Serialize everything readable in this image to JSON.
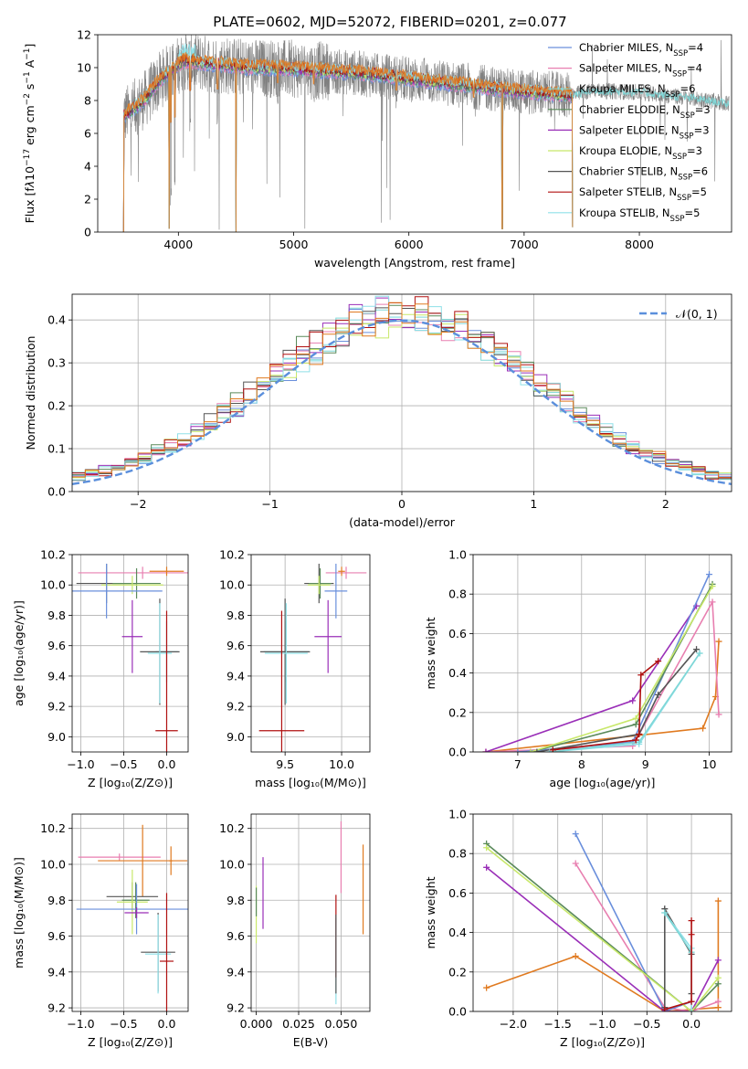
{
  "colors": {
    "Chabrier MILES": "#6a8fdc",
    "Salpeter MILES": "#e87fb0",
    "Kroupa MILES": "#7fd7d7",
    "Chabrier ELODIE": "#5a8a5a",
    "Salpeter ELODIE": "#9a2fb8",
    "Kroupa ELODIE": "#c8e86a",
    "Chabrier STELIB": "#555555",
    "Salpeter STELIB": "#b01010",
    "Kroupa STELIB": "#8fe0e8",
    "Extra orange": "#e07a20",
    "data": "#808080",
    "gaussian": "#5b8fdc"
  },
  "chart_data": [
    {
      "id": "spectrum",
      "type": "line",
      "title": "PLATE=0602, MJD=52072, FIBERID=0201, z=0.077",
      "xlabel": "wavelength [Angstrom, rest frame]",
      "ylabel_parts": [
        "Flux [f",
        "λ",
        "10",
        "−17",
        " erg cm",
        "−2",
        " s",
        "−1",
        " A",
        "−1",
        "]"
      ],
      "xlim": [
        3300,
        8800
      ],
      "ylim": [
        0,
        12
      ],
      "xticks": [
        "4000",
        "5000",
        "6000",
        "7000",
        "8000"
      ],
      "yticks": [
        "0",
        "2",
        "4",
        "6",
        "8",
        "10",
        "12"
      ],
      "grid": false,
      "legend_position": "top-right",
      "legend": [
        {
          "label": "Chabrier MILES, N",
          "sub": "SSP",
          "tail": "=4",
          "color": "#6a8fdc"
        },
        {
          "label": "Salpeter MILES, N",
          "sub": "SSP",
          "tail": "=4",
          "color": "#e87fb0"
        },
        {
          "label": "Kroupa MILES, N",
          "sub": "SSP",
          "tail": "=6",
          "color": "#7fd7d7"
        },
        {
          "label": "Chabrier ELODIE, N",
          "sub": "SSP",
          "tail": "=3",
          "color": "#5a8a5a"
        },
        {
          "label": "Salpeter ELODIE, N",
          "sub": "SSP",
          "tail": "=3",
          "color": "#9a2fb8"
        },
        {
          "label": "Kroupa ELODIE, N",
          "sub": "SSP",
          "tail": "=3",
          "color": "#c8e86a"
        },
        {
          "label": "Chabrier STELIB, N",
          "sub": "SSP",
          "tail": "=6",
          "color": "#555555"
        },
        {
          "label": "Salpeter STELIB, N",
          "sub": "SSP",
          "tail": "=5",
          "color": "#b01010"
        },
        {
          "label": "Kroupa STELIB, N",
          "sub": "SSP",
          "tail": "=5",
          "color": "#8fe0e8"
        }
      ],
      "data_x_range": [
        3520,
        8780
      ],
      "model_x_range": [
        3520,
        7420
      ],
      "data_shape": [
        [
          3520,
          7.0
        ],
        [
          3700,
          8.0
        ],
        [
          3850,
          9.3
        ],
        [
          3950,
          9.9
        ],
        [
          4050,
          10.4
        ],
        [
          4300,
          10.2
        ],
        [
          4600,
          10.0
        ],
        [
          5000,
          9.9
        ],
        [
          5500,
          9.7
        ],
        [
          6000,
          9.3
        ],
        [
          6500,
          8.9
        ],
        [
          7000,
          8.5
        ],
        [
          7400,
          8.3
        ],
        [
          7600,
          8.6
        ],
        [
          8000,
          8.5
        ],
        [
          8500,
          8.1
        ],
        [
          8780,
          7.8
        ]
      ],
      "absorption_features": [
        [
          3934,
          2.0
        ],
        [
          3969,
          2.5
        ],
        [
          4102,
          6.0
        ],
        [
          4340,
          6.5
        ],
        [
          4861,
          7.8
        ],
        [
          5175,
          7.8
        ],
        [
          5892,
          7.5
        ],
        [
          6563,
          7.2
        ]
      ],
      "model_dips": [
        [
          3920,
          0.2
        ],
        [
          4500,
          0.0
        ],
        [
          6810,
          0.2
        ],
        [
          7420,
          0.3
        ]
      ]
    },
    {
      "id": "residuals",
      "type": "histogram",
      "xlabel": "(data-model)/error",
      "ylabel": "Normed distribution",
      "xlim": [
        -2.5,
        2.5
      ],
      "ylim": [
        0,
        0.46
      ],
      "xticks": [
        "−2",
        "−1",
        "0",
        "1",
        "2"
      ],
      "yticks": [
        "0.0",
        "0.1",
        "0.2",
        "0.3",
        "0.4"
      ],
      "grid": true,
      "legend_position": "top-right",
      "gaussian_label": "𝒩(0, 1)",
      "bin_width": 0.1
    },
    {
      "id": "age-vs-Z",
      "type": "errorbar",
      "xlabel": "Z [log₁₀(Z/Z⊙)]",
      "ylabel": "age  [log₁₀(age/yr)]",
      "xlim": [
        -1.1,
        0.25
      ],
      "ylim": [
        8.9,
        10.2
      ],
      "xticks": [
        "−1.0",
        "−0.5",
        "0.0"
      ],
      "yticks": [
        "9.0",
        "9.2",
        "9.4",
        "9.6",
        "9.8",
        "10.0",
        "10.2"
      ],
      "grid": true,
      "points": [
        {
          "x": -0.28,
          "xerr": 0.75,
          "y": 10.08,
          "yerr": 0.04,
          "color": "#e87fb0"
        },
        {
          "x": 0.0,
          "xerr": 0.2,
          "y": 10.09,
          "yerr": 0.03,
          "color": "#e07a20"
        },
        {
          "x": -0.7,
          "xerr": 0.35,
          "y": 10.01,
          "yerr": 0.13,
          "color": "#555555"
        },
        {
          "x": -0.35,
          "xerr": 0.28,
          "y": 10.01,
          "yerr": 0.1,
          "color": "#5a8a5a"
        },
        {
          "x": -0.4,
          "xerr": 0.36,
          "y": 10.0,
          "yerr": 0.06,
          "color": "#c8e86a"
        },
        {
          "x": -0.7,
          "xerr": 0.65,
          "y": 9.96,
          "yerr": 0.18,
          "color": "#6a8fdc"
        },
        {
          "x": -0.4,
          "xerr": 0.12,
          "y": 9.66,
          "yerr": 0.24,
          "color": "#9a2fb8"
        },
        {
          "x": 0.0,
          "xerr": 0.13,
          "y": 9.56,
          "yerr": 0.2,
          "color": "#7fd7d7"
        },
        {
          "x": -0.08,
          "xerr": 0.23,
          "y": 9.56,
          "yerr": 0.35,
          "color": "#555555"
        },
        {
          "x": -0.08,
          "xerr": 0.14,
          "y": 9.55,
          "yerr": 0.33,
          "color": "#8fe0e8"
        },
        {
          "x": 0.0,
          "xerr": 0.13,
          "y": 9.04,
          "yerr": 0.79,
          "color": "#b01010"
        }
      ]
    },
    {
      "id": "age-vs-mass",
      "type": "errorbar",
      "xlabel": "mass [log₁₀(M/M⊙)]",
      "ylabel": "",
      "xlim": [
        9.2,
        10.25
      ],
      "ylim": [
        8.9,
        10.2
      ],
      "xticks": [
        "9.5",
        "10.0"
      ],
      "yticks": [
        "9.0",
        "9.2",
        "9.4",
        "9.6",
        "9.8",
        "10.0",
        "10.2"
      ],
      "grid": true,
      "points": [
        {
          "x": 10.04,
          "xerr": 0.18,
          "y": 10.08,
          "yerr": 0.04,
          "color": "#e87fb0"
        },
        {
          "x": 10.0,
          "xerr": 0.03,
          "y": 10.09,
          "yerr": 0.03,
          "color": "#e07a20"
        },
        {
          "x": 9.8,
          "xerr": 0.13,
          "y": 10.01,
          "yerr": 0.13,
          "color": "#555555"
        },
        {
          "x": 9.81,
          "xerr": 0.1,
          "y": 10.01,
          "yerr": 0.1,
          "color": "#5a8a5a"
        },
        {
          "x": 9.8,
          "xerr": 0.1,
          "y": 10.0,
          "yerr": 0.06,
          "color": "#c8e86a"
        },
        {
          "x": 9.95,
          "xerr": 0.1,
          "y": 9.96,
          "yerr": 0.18,
          "color": "#6a8fdc"
        },
        {
          "x": 9.88,
          "xerr": 0.12,
          "y": 9.66,
          "yerr": 0.24,
          "color": "#9a2fb8"
        },
        {
          "x": 9.51,
          "xerr": 0.2,
          "y": 9.56,
          "yerr": 0.2,
          "color": "#7fd7d7"
        },
        {
          "x": 9.5,
          "xerr": 0.22,
          "y": 9.56,
          "yerr": 0.35,
          "color": "#555555"
        },
        {
          "x": 9.51,
          "xerr": 0.19,
          "y": 9.55,
          "yerr": 0.33,
          "color": "#8fe0e8"
        },
        {
          "x": 9.47,
          "xerr": 0.2,
          "y": 9.04,
          "yerr": 0.79,
          "color": "#b01010"
        }
      ]
    },
    {
      "id": "weight-vs-age",
      "type": "line",
      "xlabel": "age  [log₁₀(age/yr)]",
      "ylabel": "mass weight",
      "xlim": [
        6.3,
        10.35
      ],
      "ylim": [
        0,
        1.0
      ],
      "xticks": [
        "7",
        "8",
        "9",
        "10"
      ],
      "yticks": [
        "0.0",
        "0.2",
        "0.4",
        "0.6",
        "0.8",
        "1.0"
      ],
      "grid": true,
      "series": [
        {
          "color": "#e07a20",
          "x": [
            6.5,
            9.9,
            10.1,
            10.15
          ],
          "y": [
            0.0,
            0.12,
            0.28,
            0.56
          ]
        },
        {
          "color": "#e87fb0",
          "x": [
            6.5,
            8.8,
            10.05,
            10.15
          ],
          "y": [
            0.0,
            0.03,
            0.76,
            0.19
          ]
        },
        {
          "color": "#9a2fb8",
          "x": [
            6.5,
            8.8,
            9.8
          ],
          "y": [
            0.0,
            0.26,
            0.74
          ]
        },
        {
          "color": "#6a8fdc",
          "x": [
            7.0,
            8.8,
            10.0
          ],
          "y": [
            0.0,
            0.05,
            0.9
          ]
        },
        {
          "color": "#5a8a5a",
          "x": [
            7.2,
            8.85,
            10.05
          ],
          "y": [
            0.0,
            0.14,
            0.85
          ]
        },
        {
          "color": "#c8e86a",
          "x": [
            7.2,
            8.85,
            10.05
          ],
          "y": [
            0.0,
            0.17,
            0.84
          ]
        },
        {
          "color": "#8fe0e8",
          "x": [
            7.5,
            8.9,
            9.85
          ],
          "y": [
            0.0,
            0.04,
            0.5
          ]
        },
        {
          "color": "#555555",
          "x": [
            7.3,
            8.9,
            9.2,
            9.8
          ],
          "y": [
            0.0,
            0.09,
            0.29,
            0.52
          ]
        },
        {
          "color": "#7fd7d7",
          "x": [
            7.5,
            8.9,
            9.85
          ],
          "y": [
            0.0,
            0.05,
            0.5
          ]
        },
        {
          "color": "#b01010",
          "x": [
            7.55,
            8.85,
            8.9,
            8.93,
            9.2
          ],
          "y": [
            0.01,
            0.06,
            0.09,
            0.39,
            0.46
          ]
        }
      ]
    },
    {
      "id": "mass-vs-Z",
      "type": "errorbar",
      "xlabel": "Z [log₁₀(Z/Z⊙)]",
      "ylabel": "mass [log₁₀(M/M⊙)]",
      "xlim": [
        -1.1,
        0.25
      ],
      "ylim": [
        9.18,
        10.28
      ],
      "xticks": [
        "−1.0",
        "−0.5",
        "0.0"
      ],
      "yticks": [
        "9.2",
        "9.4",
        "9.6",
        "9.8",
        "10.0",
        "10.2"
      ],
      "grid": true,
      "points": [
        {
          "x": -0.55,
          "xerr": 0.48,
          "y": 10.04,
          "yerr": 0.02,
          "color": "#e87fb0"
        },
        {
          "x": -0.28,
          "xerr": 0.52,
          "y": 10.02,
          "yerr": 0.2,
          "color": "#e07a20"
        },
        {
          "x": 0.05,
          "xerr": 0.02,
          "y": 10.02,
          "yerr": 0.08,
          "color": "#e07a20"
        },
        {
          "x": -0.4,
          "xerr": 0.3,
          "y": 9.82,
          "yerr": 0.08,
          "color": "#555555"
        },
        {
          "x": -0.36,
          "xerr": 0.16,
          "y": 9.8,
          "yerr": 0.1,
          "color": "#5a8a5a"
        },
        {
          "x": -0.4,
          "xerr": 0.18,
          "y": 9.79,
          "yerr": 0.18,
          "color": "#c8e86a"
        },
        {
          "x": -0.35,
          "xerr": 0.7,
          "y": 9.75,
          "yerr": 0.14,
          "color": "#6a8fdc"
        },
        {
          "x": -0.35,
          "xerr": 0.14,
          "y": 9.73,
          "yerr": 0.03,
          "color": "#9a2fb8"
        },
        {
          "x": -0.1,
          "xerr": 0.2,
          "y": 9.51,
          "yerr": 0.22,
          "color": "#555555"
        },
        {
          "x": -0.1,
          "xerr": 0.15,
          "y": 9.5,
          "yerr": 0.22,
          "color": "#8fe0e8"
        },
        {
          "x": 0.0,
          "xerr": 0.08,
          "y": 9.46,
          "yerr": 0.38,
          "color": "#b01010"
        }
      ]
    },
    {
      "id": "mass-vs-EBV",
      "type": "errorbar",
      "xlabel": "E(B-V)",
      "ylabel": "",
      "xlim": [
        -0.003,
        0.067
      ],
      "ylim": [
        9.18,
        10.28
      ],
      "xticks": [
        "0.000",
        "0.025",
        "0.050"
      ],
      "yticks": [
        "9.2",
        "9.4",
        "9.6",
        "9.8",
        "10.0",
        "10.2"
      ],
      "grid": true,
      "points": [
        {
          "x": 0.0,
          "xerr": 0.0,
          "y": 9.72,
          "yerr": 0.16,
          "color": "#c8e86a"
        },
        {
          "x": 0.004,
          "xerr": 0.0,
          "y": 9.84,
          "yerr": 0.2,
          "color": "#9a2fb8"
        },
        {
          "x": 0.0,
          "xerr": 0.0,
          "y": 9.79,
          "yerr": 0.08,
          "color": "#5a8a5a"
        },
        {
          "x": 0.047,
          "xerr": 0.0,
          "y": 9.46,
          "yerr": 0.24,
          "color": "#8fe0e8"
        },
        {
          "x": 0.047,
          "xerr": 0.0,
          "y": 9.6,
          "yerr": 0.23,
          "color": "#b01010"
        },
        {
          "x": 0.047,
          "xerr": 0.0,
          "y": 9.5,
          "yerr": 0.22,
          "color": "#555555"
        },
        {
          "x": 0.05,
          "xerr": 0.0,
          "y": 10.04,
          "yerr": 0.2,
          "color": "#e87fb0"
        },
        {
          "x": 0.063,
          "xerr": 0.0,
          "y": 9.86,
          "yerr": 0.25,
          "color": "#e07a20"
        }
      ]
    },
    {
      "id": "weight-vs-Z",
      "type": "line",
      "xlabel": "Z [log₁₀(Z/Z⊙)]",
      "ylabel": "mass weight",
      "xlim": [
        -2.45,
        0.45
      ],
      "ylim": [
        0,
        1.0
      ],
      "xticks": [
        "−2.0",
        "−1.5",
        "−1.0",
        "−0.5",
        "0.0"
      ],
      "yticks": [
        "0.0",
        "0.2",
        "0.4",
        "0.6",
        "0.8",
        "1.0"
      ],
      "grid": true,
      "series": [
        {
          "color": "#e07a20",
          "x": [
            -2.3,
            -1.3,
            -0.3,
            0.3,
            0.3
          ],
          "y": [
            0.12,
            0.28,
            0.0,
            0.02,
            0.56
          ]
        },
        {
          "color": "#e87fb0",
          "x": [
            -1.3,
            -0.3,
            0.0,
            0.3
          ],
          "y": [
            0.75,
            0.02,
            0.0,
            0.05
          ]
        },
        {
          "color": "#6a8fdc",
          "x": [
            -1.3,
            -0.3,
            0.0
          ],
          "y": [
            0.9,
            0.0,
            0.05
          ]
        },
        {
          "color": "#9a2fb8",
          "x": [
            -2.3,
            -0.3,
            0.0,
            0.3
          ],
          "y": [
            0.73,
            0.0,
            0.0,
            0.26
          ]
        },
        {
          "color": "#5a8a5a",
          "x": [
            -2.3,
            0.0,
            0.3
          ],
          "y": [
            0.85,
            0.0,
            0.14
          ]
        },
        {
          "color": "#c8e86a",
          "x": [
            -2.3,
            0.0,
            0.3
          ],
          "y": [
            0.83,
            0.0,
            0.17
          ]
        },
        {
          "color": "#555555",
          "x": [
            -0.3,
            -0.3,
            0.0,
            0.0
          ],
          "y": [
            0.02,
            0.52,
            0.29,
            0.09
          ]
        },
        {
          "color": "#8fe0e8",
          "x": [
            -0.3,
            0.0,
            0.0
          ],
          "y": [
            0.5,
            0.32,
            0.0
          ]
        },
        {
          "color": "#7fd7d7",
          "x": [
            -0.3,
            0.0
          ],
          "y": [
            0.5,
            0.3
          ]
        },
        {
          "color": "#b01010",
          "x": [
            -0.3,
            0.0,
            0.0,
            0.0
          ],
          "y": [
            0.01,
            0.05,
            0.39,
            0.46
          ]
        }
      ]
    }
  ]
}
